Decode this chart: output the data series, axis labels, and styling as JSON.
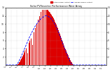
{
  "title": "Solar PV/Inverter Performance West Array",
  "legend_actual": "Actual Power Output",
  "legend_avg": "Average Power Output",
  "bg_color": "#ffffff",
  "plot_bg_color": "#ffffff",
  "bar_color": "#dd0000",
  "avg_color": "#0000ff",
  "spike_color": "#ffffff",
  "grid_color": "#aaaaaa",
  "border_color": "#444444",
  "ylim": [
    0,
    14
  ],
  "yticks_left": [
    2,
    4,
    6,
    8,
    10,
    12,
    14
  ],
  "yticks_right": [
    2,
    4,
    6,
    8,
    10,
    12,
    14
  ],
  "num_points": 144,
  "time_labels": [
    "4",
    "5",
    "6",
    "7",
    "8",
    "9",
    "10",
    "11",
    "12",
    "13",
    "14",
    "15",
    "16",
    "17",
    "18",
    "19",
    "20",
    "21"
  ],
  "time_positions": [
    0,
    8,
    16,
    24,
    32,
    40,
    48,
    56,
    64,
    72,
    80,
    88,
    96,
    104,
    112,
    120,
    128,
    136
  ],
  "actual_values": [
    0,
    0,
    0,
    0,
    0,
    0,
    0,
    0,
    0,
    0,
    0,
    0,
    0,
    0,
    0,
    0,
    0.1,
    0.2,
    0.4,
    0.6,
    0.9,
    1.2,
    1.5,
    1.8,
    2.2,
    2.6,
    3.0,
    3.5,
    3.2,
    4.0,
    3.5,
    2.8,
    5.0,
    5.5,
    6.0,
    5.0,
    6.5,
    7.0,
    5.0,
    7.5,
    8.0,
    6.0,
    9.0,
    5.0,
    10.0,
    8.0,
    11.0,
    7.0,
    12.0,
    10.0,
    13.0,
    12.5,
    13.5,
    13.0,
    13.5,
    12.0,
    13.5,
    13.4,
    13.5,
    13.5,
    13.5,
    13.2,
    13.0,
    12.8,
    12.5,
    12.3,
    12.0,
    11.7,
    11.4,
    11.0,
    10.6,
    10.2,
    9.8,
    9.4,
    9.0,
    8.5,
    8.0,
    7.6,
    7.1,
    6.6,
    6.1,
    5.7,
    5.2,
    4.7,
    4.3,
    3.9,
    3.5,
    3.1,
    2.7,
    2.3,
    1.9,
    1.6,
    1.2,
    0.9,
    0.6,
    0.3,
    0.1,
    0,
    0,
    0,
    0,
    0,
    0,
    0,
    0,
    0,
    0,
    0,
    0,
    0,
    0,
    0,
    0,
    0,
    0,
    0,
    0,
    0,
    0,
    0,
    0,
    0,
    0,
    0,
    0,
    0,
    0,
    0,
    0,
    0,
    0,
    0,
    0,
    0,
    0,
    0,
    0,
    0,
    0,
    0,
    0,
    0,
    0,
    0
  ],
  "avg_values": [
    0,
    0,
    0,
    0,
    0,
    0,
    0,
    0,
    0,
    0,
    0,
    0,
    0,
    0,
    0,
    0,
    0.2,
    0.4,
    0.7,
    1.0,
    1.4,
    1.7,
    2.1,
    2.5,
    2.9,
    3.3,
    3.7,
    4.1,
    4.5,
    4.9,
    5.3,
    5.7,
    6.1,
    6.5,
    6.9,
    7.2,
    7.6,
    7.9,
    8.3,
    8.6,
    8.9,
    9.2,
    9.5,
    9.8,
    10.0,
    10.3,
    10.5,
    10.7,
    10.9,
    11.1,
    11.3,
    11.5,
    11.6,
    11.7,
    11.8,
    11.9,
    12.0,
    12.0,
    12.0,
    12.0,
    11.9,
    11.8,
    11.7,
    11.6,
    11.4,
    11.2,
    11.0,
    10.8,
    10.5,
    10.2,
    9.9,
    9.6,
    9.2,
    8.8,
    8.4,
    8.0,
    7.5,
    7.1,
    6.7,
    6.2,
    5.7,
    5.3,
    4.8,
    4.4,
    3.9,
    3.5,
    3.0,
    2.6,
    2.2,
    1.8,
    1.4,
    1.0,
    0.7,
    0.4,
    0.2,
    0.1,
    0,
    0,
    0,
    0,
    0,
    0,
    0,
    0,
    0,
    0,
    0,
    0,
    0,
    0,
    0,
    0,
    0,
    0,
    0,
    0,
    0,
    0,
    0,
    0,
    0,
    0,
    0,
    0,
    0,
    0,
    0,
    0,
    0,
    0,
    0,
    0,
    0,
    0,
    0,
    0,
    0,
    0,
    0,
    0,
    0,
    0,
    0,
    0
  ],
  "white_spike_indices": [
    28,
    30,
    32,
    35,
    37,
    39,
    41,
    43,
    45,
    47,
    49,
    51,
    53,
    55,
    57
  ]
}
